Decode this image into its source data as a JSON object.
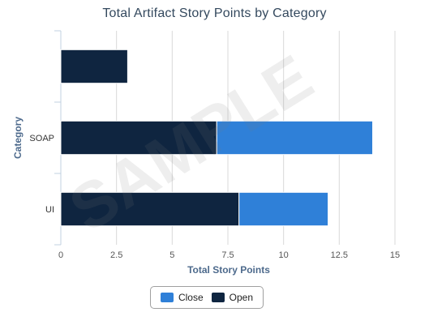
{
  "chart_data": {
    "type": "bar",
    "orientation": "horizontal",
    "stacked": true,
    "title": "Total Artifact Story Points by Category",
    "xlabel": "Total Story Points",
    "ylabel": "Category",
    "categories": [
      "",
      "SOAP",
      "UI"
    ],
    "series": [
      {
        "name": "Open",
        "color": "#0f2540",
        "values": [
          3,
          7,
          8
        ]
      },
      {
        "name": "Close",
        "color": "#2f80d8",
        "values": [
          0,
          7,
          4
        ]
      }
    ],
    "xlim": [
      0,
      15
    ],
    "xticks": [
      "0",
      "2.5",
      "5",
      "7.5",
      "10",
      "12.5",
      "15"
    ],
    "grid": true,
    "legend_position": "bottom-center",
    "watermark": "SAMPLE"
  },
  "legend": [
    {
      "label": "Close",
      "color": "#2f80d8"
    },
    {
      "label": "Open",
      "color": "#0f2540"
    }
  ]
}
